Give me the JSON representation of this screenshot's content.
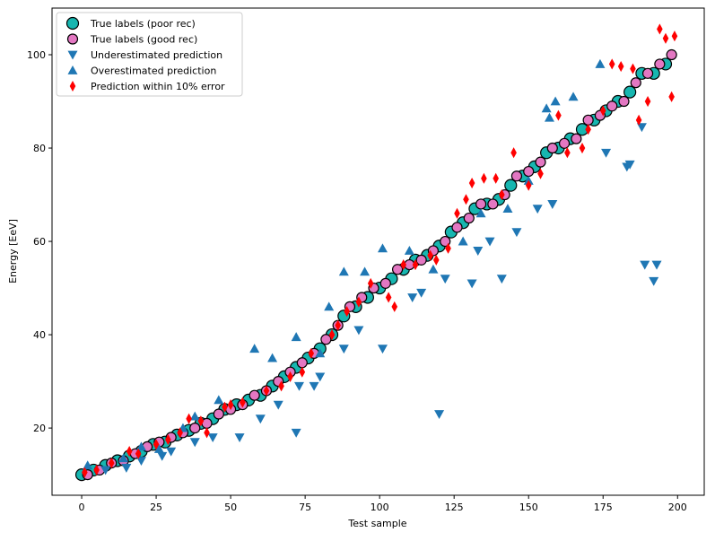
{
  "chart_data": {
    "type": "scatter",
    "xlabel": "Test sample",
    "ylabel": "Energy [EeV]",
    "xlim": [
      -9.95,
      208.95
    ],
    "ylim": [
      5.6,
      110
    ],
    "xticks": [
      0,
      25,
      50,
      75,
      100,
      125,
      150,
      175,
      200
    ],
    "yticks": [
      20,
      40,
      60,
      80,
      100
    ],
    "legend": "upper left",
    "series": [
      {
        "name": "True labels (poor rec)",
        "color": "#17b6b0",
        "edgecolor": "#000000",
        "marker": "o",
        "size": 6.5,
        "x": [
          0,
          4,
          8,
          12,
          16,
          20,
          24,
          28,
          32,
          36,
          40,
          44,
          48,
          52,
          56,
          60,
          64,
          68,
          72,
          76,
          80,
          84,
          88,
          92,
          96,
          100,
          104,
          108,
          112,
          116,
          120,
          124,
          128,
          132,
          136,
          140,
          144,
          148,
          152,
          156,
          160,
          164,
          168,
          172,
          176,
          180,
          184,
          188,
          192,
          196
        ],
        "values": [
          10,
          11,
          12,
          13,
          14,
          15,
          16.5,
          17,
          18.5,
          19.5,
          21,
          22,
          24,
          25,
          26,
          27,
          29,
          31,
          33,
          35,
          37,
          40,
          44,
          46,
          48,
          50,
          52,
          54,
          56,
          57,
          59,
          62,
          64,
          67,
          68,
          69,
          72,
          74,
          76,
          79,
          80,
          82,
          84,
          86,
          88,
          90,
          92,
          96,
          96,
          98
        ]
      },
      {
        "name": "True labels (good rec)",
        "color": "#e377c2",
        "edgecolor": "#000000",
        "marker": "o",
        "size": 5.5,
        "x": [
          2,
          6,
          10,
          14,
          18,
          22,
          26,
          30,
          34,
          38,
          42,
          46,
          50,
          54,
          58,
          62,
          66,
          70,
          74,
          78,
          82,
          86,
          90,
          94,
          98,
          102,
          106,
          110,
          114,
          118,
          122,
          126,
          130,
          134,
          138,
          142,
          146,
          150,
          154,
          158,
          162,
          166,
          170,
          174,
          178,
          182,
          186,
          190,
          194,
          198
        ],
        "values": [
          10,
          11,
          12.5,
          13,
          14.5,
          16,
          17,
          18,
          19,
          20,
          21,
          23,
          24,
          25,
          27,
          28,
          30,
          32,
          34,
          36,
          39,
          42,
          46,
          48,
          50,
          51,
          54,
          55,
          56,
          58,
          60,
          63,
          65,
          68,
          68,
          70,
          74,
          75,
          77,
          80,
          81,
          82,
          86,
          87,
          89,
          90,
          94,
          96,
          98,
          100
        ]
      },
      {
        "name": "Underestimated prediction",
        "color": "#1f77b4",
        "marker": "v",
        "size": 5.5,
        "x": [
          8,
          15,
          20,
          27,
          30,
          38,
          44,
          53,
          60,
          66,
          72,
          73,
          78,
          80,
          88,
          93,
          101,
          111,
          114,
          120,
          122,
          131,
          133,
          137,
          141,
          146,
          153,
          158,
          176,
          183,
          184,
          188,
          189,
          192,
          193
        ],
        "values": [
          11,
          11.5,
          13,
          14,
          15,
          17,
          18,
          18,
          22,
          25,
          19,
          29,
          29,
          31,
          37,
          41,
          37,
          48,
          49,
          23,
          52,
          51,
          58,
          60,
          52,
          62,
          67,
          68,
          79,
          76,
          76.5,
          84.5,
          55,
          51.5,
          55
        ]
      },
      {
        "name": "Overestimated prediction",
        "color": "#1f77b4",
        "marker": "^",
        "size": 5.5,
        "x": [
          2,
          14,
          20,
          26,
          34,
          38,
          46,
          58,
          64,
          72,
          80,
          83,
          88,
          95,
          101,
          110,
          118,
          128,
          134,
          143,
          150,
          156,
          157,
          159,
          165,
          174
        ],
        "values": [
          12,
          13.5,
          16,
          15.5,
          20,
          22.5,
          26,
          37,
          35,
          39.5,
          36,
          46,
          53.5,
          53.5,
          58.5,
          58,
          54,
          60,
          66,
          67,
          73,
          88.5,
          86.5,
          90,
          91,
          98
        ]
      },
      {
        "name": "Prediction within 10% error",
        "color": "#ff0000",
        "marker": "d",
        "size": 5.5,
        "x": [
          1,
          5,
          10,
          16,
          19,
          25,
          29,
          33,
          36,
          40,
          42,
          48,
          50,
          54,
          62,
          67,
          70,
          74,
          77,
          84,
          86,
          89,
          93,
          97,
          103,
          105,
          108,
          112,
          117,
          119,
          123,
          126,
          129,
          131,
          135,
          139,
          141,
          145,
          150,
          154,
          160,
          163,
          168,
          170,
          175,
          178,
          181,
          185,
          187,
          190,
          194,
          196,
          198,
          199
        ],
        "values": [
          10.5,
          11,
          12.5,
          15,
          14.5,
          16.5,
          17.5,
          19,
          22,
          21.5,
          19,
          24.5,
          25,
          25.5,
          28,
          29,
          31,
          32,
          36,
          40,
          42,
          45,
          47,
          51,
          48,
          46,
          55,
          55,
          57,
          56,
          58.5,
          66,
          69,
          72.5,
          73.5,
          73.5,
          70,
          79,
          72,
          74.5,
          87,
          79,
          80,
          84,
          88,
          98,
          97.5,
          97,
          86,
          90,
          105.5,
          103.5,
          91,
          104
        ]
      }
    ]
  }
}
